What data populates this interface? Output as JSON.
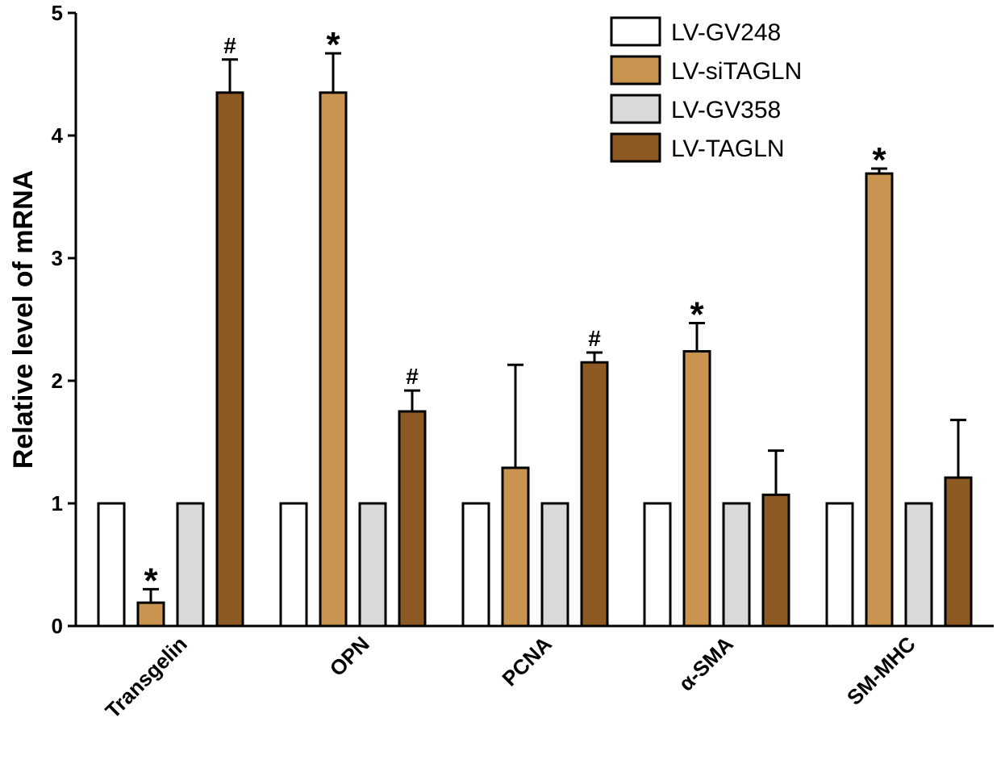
{
  "chart_data": {
    "type": "bar",
    "title": "",
    "xlabel": "",
    "ylabel": "Relative level of mRNA",
    "ylim": [
      0,
      5
    ],
    "yticks": [
      "0",
      "1",
      "2",
      "3",
      "4",
      "5"
    ],
    "categories": [
      "Transgelin",
      "OPN",
      "PCNA",
      "α-SMA",
      "SM-MHC"
    ],
    "legend_position": "top-right",
    "series": [
      {
        "name": "LV-GV248",
        "color": "#ffffff",
        "values": [
          1,
          1,
          1,
          1,
          1
        ],
        "errors": [
          0,
          0,
          0,
          0,
          0
        ],
        "annotations": [
          "",
          "",
          "",
          "",
          ""
        ]
      },
      {
        "name": "LV-siTAGLN",
        "color": "#c9944f",
        "values": [
          0.19,
          4.35,
          1.29,
          2.24,
          3.69
        ],
        "errors": [
          0.11,
          0.32,
          0.84,
          0.23,
          0.04
        ],
        "annotations": [
          "*",
          "*",
          "",
          "*",
          "*"
        ]
      },
      {
        "name": "LV-GV358",
        "color": "#d9d9d9",
        "values": [
          1,
          1,
          1,
          1,
          1
        ],
        "errors": [
          0,
          0,
          0,
          0,
          0
        ],
        "annotations": [
          "",
          "",
          "",
          "",
          ""
        ]
      },
      {
        "name": "LV-TAGLN",
        "color": "#8c5a22",
        "values": [
          4.35,
          1.75,
          2.15,
          1.07,
          1.21
        ],
        "errors": [
          0.27,
          0.17,
          0.08,
          0.36,
          0.47
        ],
        "annotations": [
          "#",
          "#",
          "#",
          "",
          ""
        ]
      }
    ]
  }
}
